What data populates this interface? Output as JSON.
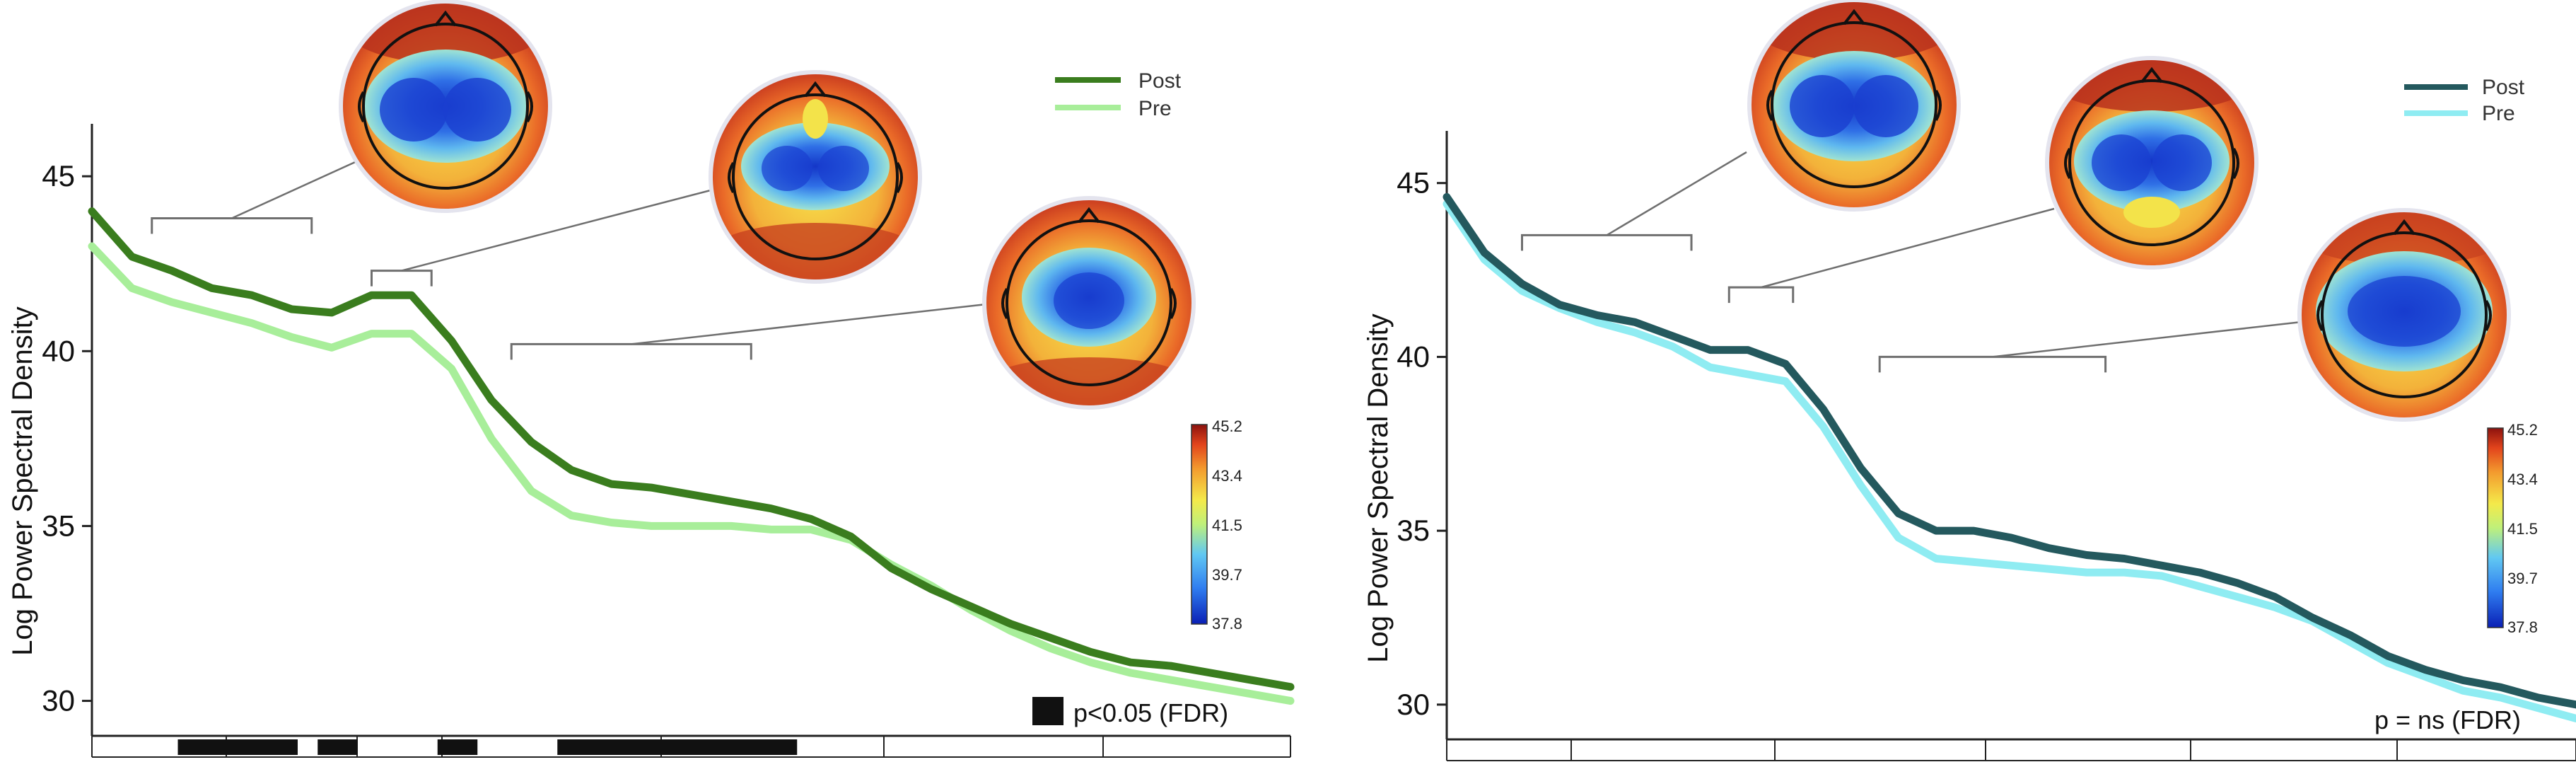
{
  "colors": {
    "left_post": "#3a7d1e",
    "left_pre": "#a8ee9a",
    "right_post": "#24595e",
    "right_pre": "#8fecf2",
    "bracket": "#6f6f6f",
    "axis": "#222222",
    "sig_bar": "#111111"
  },
  "chart_data": [
    {
      "type": "line",
      "panel": "left",
      "xlabel": "",
      "ylabel": "Log Power Spectral Density",
      "ylim": [
        29.0,
        46.5
      ],
      "yticks": [
        30,
        35,
        40,
        45
      ],
      "xlim": [
        0,
        30
      ],
      "x": [
        0,
        1,
        2,
        3,
        4,
        5,
        6,
        7,
        8,
        9,
        10,
        11,
        12,
        13,
        14,
        15,
        16,
        17,
        18,
        19,
        20,
        21,
        22,
        23,
        24,
        25,
        26,
        27,
        28,
        29,
        30
      ],
      "series": [
        {
          "name": "Post",
          "values": [
            44.0,
            42.7,
            42.3,
            41.8,
            41.6,
            41.2,
            41.1,
            41.6,
            41.6,
            40.3,
            38.6,
            37.4,
            36.6,
            36.2,
            36.1,
            35.9,
            35.7,
            35.5,
            35.2,
            34.7,
            33.8,
            33.2,
            32.7,
            32.2,
            31.8,
            31.4,
            31.1,
            31.0,
            30.8,
            30.6,
            30.4
          ]
        },
        {
          "name": "Pre",
          "values": [
            43.0,
            41.8,
            41.4,
            41.1,
            40.8,
            40.4,
            40.1,
            40.5,
            40.5,
            39.5,
            37.5,
            36.0,
            35.3,
            35.1,
            35.0,
            35.0,
            35.0,
            34.9,
            34.9,
            34.6,
            33.9,
            33.3,
            32.6,
            32.0,
            31.5,
            31.1,
            30.8,
            30.6,
            30.4,
            30.2,
            30.0
          ]
        }
      ],
      "legend": {
        "position": "top-right",
        "entries": [
          "Post",
          "Pre"
        ]
      },
      "significance": {
        "label": "p<0.05 (FDR)",
        "segments": [
          [
            1,
            4
          ],
          [
            4.5,
            5.5
          ],
          [
            7.5,
            8.5
          ],
          [
            10.5,
            16.5
          ]
        ]
      },
      "brackets": [
        {
          "x_range": [
            1.5,
            5.5
          ],
          "y": 43.8,
          "topo": 0
        },
        {
          "x_range": [
            7,
            8.5
          ],
          "y": 42.3,
          "topo": 1
        },
        {
          "x_range": [
            10.5,
            16.5
          ],
          "y": 40.2,
          "topo": 2
        }
      ],
      "colorbar": {
        "min": 37.8,
        "max": 45.2,
        "ticks": [
          "45.2",
          "43.4",
          "41.5",
          "39.7",
          "37.8"
        ]
      }
    },
    {
      "type": "line",
      "panel": "right",
      "xlabel": "",
      "ylabel": "Log Power Spectral Density",
      "ylim": [
        29.0,
        46.5
      ],
      "yticks": [
        30,
        35,
        40,
        45
      ],
      "xlim": [
        0,
        30
      ],
      "x": [
        0,
        1,
        2,
        3,
        4,
        5,
        6,
        7,
        8,
        9,
        10,
        11,
        12,
        13,
        14,
        15,
        16,
        17,
        18,
        19,
        20,
        21,
        22,
        23,
        24,
        25,
        26,
        27,
        28,
        29,
        30
      ],
      "series": [
        {
          "name": "Post",
          "values": [
            44.6,
            43.0,
            42.1,
            41.5,
            41.2,
            41.0,
            40.6,
            40.2,
            40.2,
            39.8,
            38.5,
            36.8,
            35.5,
            35.0,
            35.0,
            34.8,
            34.5,
            34.3,
            34.2,
            34.0,
            33.8,
            33.5,
            33.1,
            32.5,
            32.0,
            31.4,
            31.0,
            30.7,
            30.5,
            30.2,
            30.0
          ]
        },
        {
          "name": "Pre",
          "values": [
            44.4,
            42.8,
            41.9,
            41.4,
            41.0,
            40.7,
            40.3,
            39.7,
            39.5,
            39.3,
            38.0,
            36.3,
            34.8,
            34.2,
            34.1,
            34.0,
            33.9,
            33.8,
            33.8,
            33.7,
            33.4,
            33.1,
            32.8,
            32.4,
            31.8,
            31.2,
            30.8,
            30.4,
            30.2,
            29.9,
            29.6
          ]
        }
      ],
      "legend": {
        "position": "top-right",
        "entries": [
          "Post",
          "Pre"
        ]
      },
      "significance": {
        "label": "p = ns  (FDR)",
        "segments": []
      },
      "brackets": [
        {
          "x_range": [
            2,
            6.5
          ],
          "y": 43.5,
          "topo": 0
        },
        {
          "x_range": [
            7.5,
            9.2
          ],
          "y": 42.0,
          "topo": 1
        },
        {
          "x_range": [
            11.5,
            17.5
          ],
          "y": 40.0,
          "topo": 2
        }
      ],
      "colorbar": {
        "min": 37.8,
        "max": 45.2,
        "ticks": [
          "45.2",
          "43.4",
          "41.5",
          "39.7",
          "37.8"
        ]
      }
    }
  ]
}
